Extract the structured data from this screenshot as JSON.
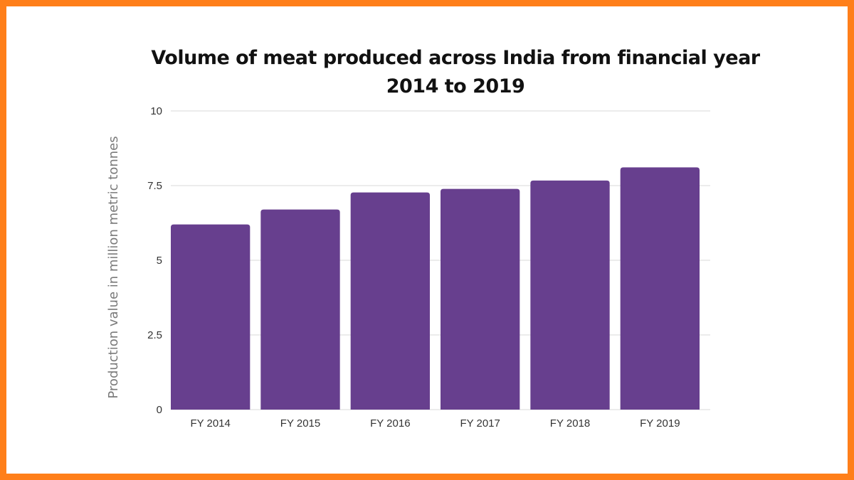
{
  "chart_data": {
    "type": "bar",
    "title": "Volume of meat produced across India from financial year 2014 to 2019",
    "xlabel": "",
    "ylabel": "Production value in million metric tonnes",
    "categories": [
      "FY 2014",
      "FY 2015",
      "FY 2016",
      "FY 2017",
      "FY 2018",
      "FY 2019"
    ],
    "values": [
      6.2,
      6.7,
      7.27,
      7.39,
      7.67,
      8.11
    ],
    "ylim": [
      0,
      10
    ],
    "yticks": [
      0,
      2.5,
      5,
      7.5,
      10
    ],
    "ytick_labels": [
      "0",
      "2.5",
      "5",
      "7.5",
      "10"
    ],
    "grid": true,
    "legend": "none",
    "colors": {
      "bar": "#673f8e",
      "grid": "#d9d9d9",
      "frame": "#ff7f1a"
    }
  }
}
